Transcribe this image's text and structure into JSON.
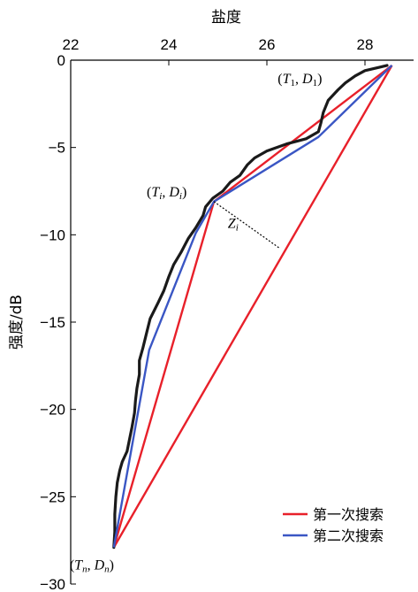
{
  "chart_data": {
    "type": "line",
    "xlabel": "盐度",
    "ylabel": "强度/dB",
    "xlim": [
      22,
      28.6
    ],
    "ylim": [
      -30,
      0
    ],
    "x_axis_position": "top",
    "x_ticks": [
      22,
      24,
      26,
      28
    ],
    "y_ticks": [
      0,
      -5,
      -10,
      -15,
      -20,
      -25,
      -30
    ],
    "grid": false,
    "legend_position": "bottom-right",
    "profile": {
      "color": "#1a1a1a",
      "points": [
        [
          28.45,
          -0.3
        ],
        [
          28.3,
          -0.4
        ],
        [
          28.0,
          -0.6
        ],
        [
          27.8,
          -0.9
        ],
        [
          27.6,
          -1.3
        ],
        [
          27.45,
          -1.7
        ],
        [
          27.25,
          -2.3
        ],
        [
          27.15,
          -3.0
        ],
        [
          27.1,
          -3.6
        ],
        [
          27.05,
          -4.1
        ],
        [
          26.8,
          -4.5
        ],
        [
          26.4,
          -4.8
        ],
        [
          26.0,
          -5.2
        ],
        [
          25.75,
          -5.6
        ],
        [
          25.6,
          -6.0
        ],
        [
          25.45,
          -6.6
        ],
        [
          25.25,
          -7.0
        ],
        [
          25.1,
          -7.5
        ],
        [
          24.9,
          -7.9
        ],
        [
          24.75,
          -8.4
        ],
        [
          24.7,
          -8.9
        ],
        [
          24.55,
          -9.6
        ],
        [
          24.4,
          -10.2
        ],
        [
          24.25,
          -11.0
        ],
        [
          24.1,
          -11.7
        ],
        [
          24.0,
          -12.4
        ],
        [
          23.9,
          -13.2
        ],
        [
          23.78,
          -13.9
        ],
        [
          23.62,
          -14.8
        ],
        [
          23.55,
          -15.6
        ],
        [
          23.47,
          -16.5
        ],
        [
          23.4,
          -17.2
        ],
        [
          23.4,
          -18.0
        ],
        [
          23.35,
          -18.8
        ],
        [
          23.32,
          -19.5
        ],
        [
          23.3,
          -20.2
        ],
        [
          23.25,
          -21.0
        ],
        [
          23.2,
          -21.7
        ],
        [
          23.15,
          -22.4
        ],
        [
          23.05,
          -23.0
        ],
        [
          23.0,
          -23.5
        ],
        [
          22.95,
          -24.2
        ],
        [
          22.92,
          -25.0
        ],
        [
          22.9,
          -26.0
        ],
        [
          22.9,
          -27.0
        ],
        [
          22.88,
          -27.9
        ]
      ]
    },
    "series": [
      {
        "name": "第一次搜索",
        "color": "#e8202a",
        "segments": [
          [
            [
              28.55,
              -0.3
            ],
            [
              24.92,
              -8.1
            ]
          ],
          [
            [
              28.55,
              -0.3
            ],
            [
              22.88,
              -27.9
            ]
          ],
          [
            [
              24.92,
              -8.1
            ],
            [
              22.88,
              -27.9
            ]
          ]
        ]
      },
      {
        "name": "第二次搜索",
        "color": "#3a56c4",
        "segments": [
          [
            [
              28.55,
              -0.3
            ],
            [
              27.05,
              -4.4
            ],
            [
              24.92,
              -8.1
            ],
            [
              24.55,
              -9.9
            ],
            [
              23.6,
              -16.6
            ],
            [
              22.88,
              -27.9
            ]
          ]
        ]
      }
    ],
    "perpendicular": {
      "from": [
        24.92,
        -8.1
      ],
      "to": [
        26.25,
        -10.75
      ],
      "style": "dotted"
    },
    "annotations": [
      {
        "label_parts": [
          "(",
          "T",
          "1",
          ", ",
          "D",
          "1",
          ")"
        ],
        "at": [
          28.42,
          -0.3
        ]
      },
      {
        "label_parts": [
          "(",
          "T",
          "i",
          ", ",
          "D",
          "i",
          ")"
        ],
        "at": [
          24.92,
          -8.1
        ]
      },
      {
        "label_parts": [
          "Z",
          "i"
        ],
        "at": [
          25.6,
          -9.2
        ]
      },
      {
        "label_parts": [
          "(",
          "T",
          "n",
          ", ",
          "D",
          "n",
          ")"
        ],
        "at": [
          22.88,
          -27.9
        ]
      }
    ]
  }
}
